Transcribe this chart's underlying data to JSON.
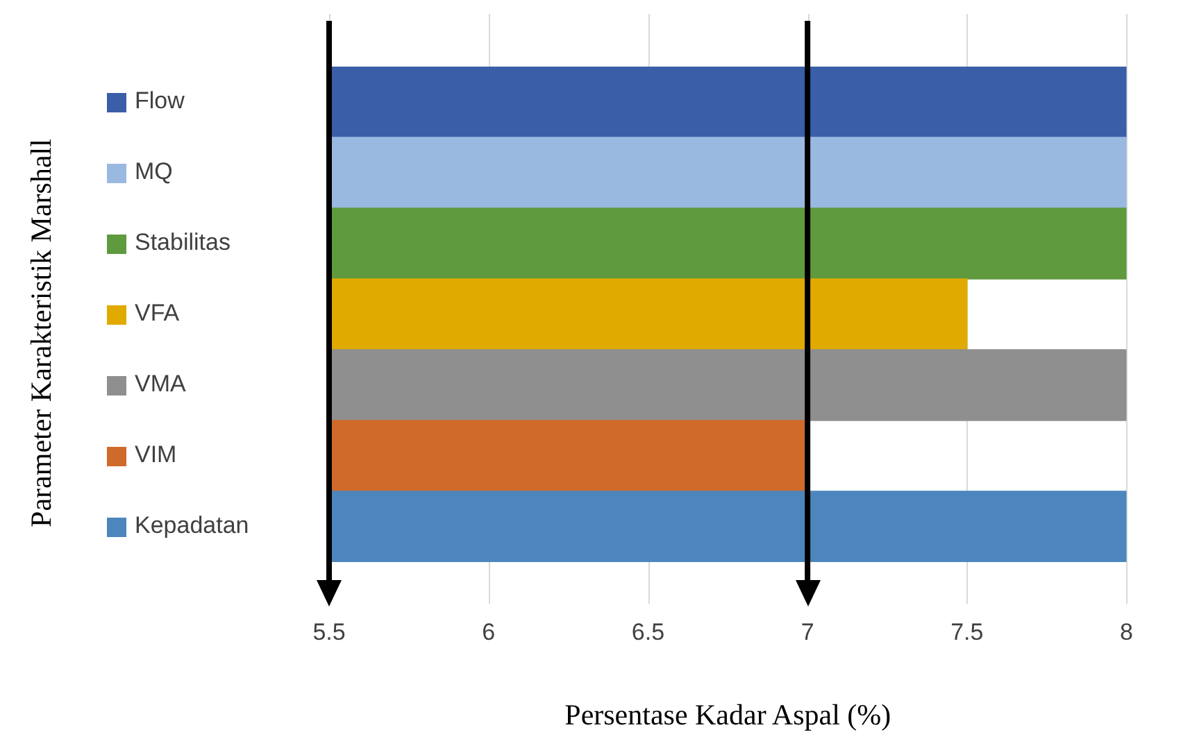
{
  "chart_data": {
    "type": "bar",
    "orientation": "horizontal",
    "xlabel": "Persentase Kadar Aspal (%)",
    "ylabel": "Parameter Karakteristik Marshall",
    "categories": [
      "Flow",
      "MQ",
      "Stabilitas",
      "VFA",
      "VMA",
      "VIM",
      "Kepadatan"
    ],
    "values": [
      8,
      8,
      8,
      7.5,
      8,
      7,
      8
    ],
    "colors": [
      "#3a5fa8",
      "#9ab9e0",
      "#5f9a3e",
      "#e0aa00",
      "#8f8f8f",
      "#d06a2a",
      "#4c86bd"
    ],
    "xlim": [
      5.5,
      8
    ],
    "xticks": [
      5.5,
      6,
      6.5,
      7,
      7.5,
      8
    ],
    "grid": "x",
    "ref_lines": [
      {
        "axis": "x",
        "value": 5.5,
        "color": "#000000"
      },
      {
        "axis": "x",
        "value": 7,
        "color": "#000000"
      }
    ]
  }
}
